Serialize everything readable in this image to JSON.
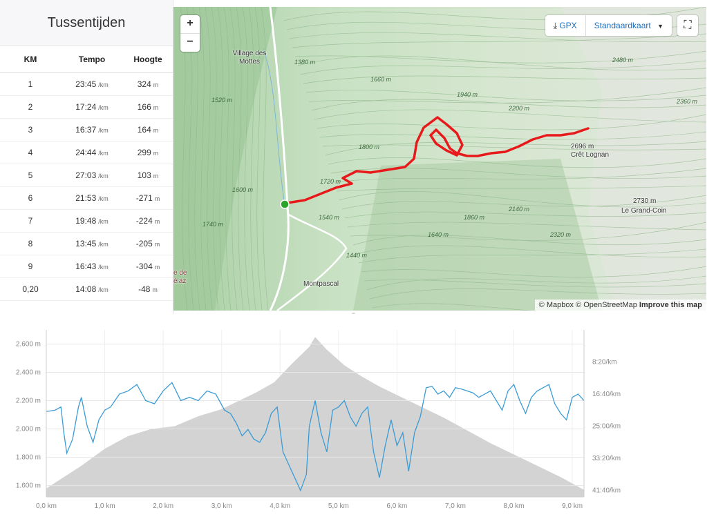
{
  "splits": {
    "title": "Tussentijden",
    "headers": [
      "KM",
      "Tempo",
      "Hoogte"
    ],
    "pace_unit": "/km",
    "elev_unit": "m",
    "rows": [
      {
        "km": "1",
        "pace": "23:45",
        "elev": "324"
      },
      {
        "km": "2",
        "pace": "17:24",
        "elev": "166"
      },
      {
        "km": "3",
        "pace": "16:37",
        "elev": "164"
      },
      {
        "km": "4",
        "pace": "24:44",
        "elev": "299"
      },
      {
        "km": "5",
        "pace": "27:03",
        "elev": "103"
      },
      {
        "km": "6",
        "pace": "21:53",
        "elev": "-271"
      },
      {
        "km": "7",
        "pace": "19:48",
        "elev": "-224"
      },
      {
        "km": "8",
        "pace": "13:45",
        "elev": "-205"
      },
      {
        "km": "9",
        "pace": "16:43",
        "elev": "-304"
      },
      {
        "km": "0,20",
        "pace": "14:08",
        "elev": "-48"
      }
    ]
  },
  "map": {
    "zoom_in": "+",
    "zoom_out": "−",
    "gpx_label": "GPX",
    "basemap_label": "Standaardkaart",
    "fullscreen_icon": "expand-icon",
    "attribution": {
      "mapbox": "© Mapbox",
      "osm": "© OpenStreetMap",
      "improve": "Improve this map"
    },
    "route_color": "#e8191a",
    "start_color": "#2aa52a",
    "place_labels": [
      {
        "id": "village",
        "text": "Village des Mottes"
      },
      {
        "id": "cret",
        "text": "Crêt Lognan"
      },
      {
        "id": "cret_alt",
        "text": "2696 m"
      },
      {
        "id": "grandcoin",
        "text": "Le Grand-Coin"
      },
      {
        "id": "grandcoin_alt",
        "text": "2730 m"
      },
      {
        "id": "montpascal",
        "text": "Montpascal"
      },
      {
        "id": "edge1",
        "text": "e de"
      },
      {
        "id": "edge2",
        "text": "élaz"
      }
    ],
    "contour_labels": [
      "1380 m",
      "1660 m",
      "1940 m",
      "2200 m",
      "2480 m",
      "2360 m",
      "1520 m",
      "1800 m",
      "1720 m",
      "1600 m",
      "1540 m",
      "1440 m",
      "1640 m",
      "1860 m",
      "2140 m",
      "2320 m",
      "1740 m"
    ]
  },
  "chart_data": {
    "type": "area",
    "x_unit": "km",
    "x_ticks": [
      "0,0 km",
      "1,0 km",
      "2,0 km",
      "3,0 km",
      "4,0 km",
      "5,0 km",
      "6,0 km",
      "7,0 km",
      "8,0 km",
      "9,0 km"
    ],
    "y_left_ticks": [
      "1.600 m",
      "1.800 m",
      "2.000 m",
      "2.200 m",
      "2.400 m",
      "2.600 m"
    ],
    "y_right_ticks": [
      "8:20/km",
      "16:40/km",
      "25:00/km",
      "33:20/km",
      "41:40/km"
    ],
    "xlim": [
      0,
      9.2
    ],
    "ylim_left": [
      1520,
      2700
    ],
    "pace_lim_seconds": [
      0,
      2600
    ],
    "series": [
      {
        "kind": "elevation",
        "color": "#d3d3d3",
        "x": [
          0,
          0.3,
          0.6,
          1.0,
          1.4,
          1.8,
          2.2,
          2.6,
          3.0,
          3.3,
          3.6,
          3.9,
          4.2,
          4.5,
          4.6,
          4.8,
          5.1,
          5.4,
          5.7,
          6.0,
          6.4,
          6.8,
          7.2,
          7.6,
          8.0,
          8.4,
          8.8,
          9.2
        ],
        "y": [
          1580,
          1660,
          1740,
          1860,
          1950,
          2000,
          2020,
          2090,
          2140,
          2200,
          2260,
          2330,
          2460,
          2580,
          2650,
          2560,
          2450,
          2370,
          2300,
          2240,
          2160,
          2080,
          1990,
          1900,
          1820,
          1740,
          1660,
          1570
        ]
      },
      {
        "kind": "pace",
        "color": "#3a9bd5",
        "x": [
          0,
          0.15,
          0.25,
          0.3,
          0.35,
          0.45,
          0.55,
          0.6,
          0.7,
          0.8,
          0.9,
          1.0,
          1.1,
          1.25,
          1.4,
          1.55,
          1.7,
          1.85,
          2.0,
          2.15,
          2.3,
          2.45,
          2.6,
          2.75,
          2.9,
          3.05,
          3.15,
          3.25,
          3.35,
          3.45,
          3.55,
          3.65,
          3.75,
          3.85,
          3.95,
          4.05,
          4.15,
          4.25,
          4.35,
          4.45,
          4.5,
          4.6,
          4.7,
          4.8,
          4.9,
          5.0,
          5.1,
          5.2,
          5.3,
          5.4,
          5.5,
          5.6,
          5.7,
          5.8,
          5.9,
          6.0,
          6.1,
          6.2,
          6.3,
          6.4,
          6.5,
          6.6,
          6.7,
          6.8,
          6.9,
          7.0,
          7.1,
          7.2,
          7.3,
          7.4,
          7.5,
          7.6,
          7.7,
          7.8,
          7.9,
          8.0,
          8.1,
          8.2,
          8.3,
          8.4,
          8.5,
          8.6,
          8.7,
          8.8,
          8.9,
          9.0,
          9.1,
          9.2
        ],
        "y": [
          1270,
          1250,
          1200,
          1600,
          1920,
          1700,
          1200,
          1050,
          1500,
          1750,
          1400,
          1250,
          1200,
          1000,
          950,
          850,
          1100,
          1150,
          950,
          820,
          1100,
          1050,
          1100,
          950,
          1000,
          1250,
          1300,
          1450,
          1650,
          1550,
          1700,
          1750,
          1600,
          1300,
          1200,
          1900,
          2100,
          2300,
          2500,
          2250,
          1500,
          1100,
          1600,
          1900,
          1250,
          1200,
          1100,
          1350,
          1500,
          1300,
          1200,
          1900,
          2300,
          1800,
          1400,
          1800,
          1600,
          2200,
          1600,
          1350,
          900,
          880,
          1000,
          950,
          1050,
          900,
          920,
          950,
          980,
          1050,
          1000,
          950,
          1100,
          1250,
          950,
          850,
          1100,
          1300,
          1050,
          950,
          900,
          850,
          1150,
          1300,
          1400,
          1050,
          1000,
          1100
        ]
      }
    ]
  }
}
